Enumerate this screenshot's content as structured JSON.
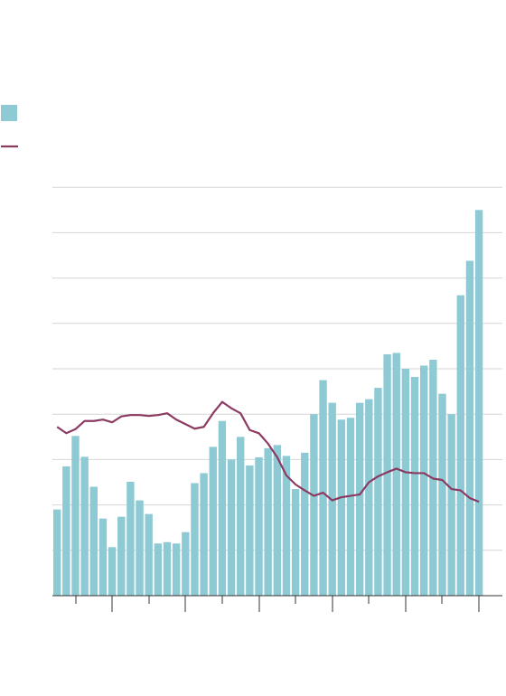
{
  "chart_data": {
    "type": "bar",
    "title": "",
    "xlabel": "",
    "ylabel": "",
    "grid": true,
    "legend_position": "top-left",
    "ylim_bars": [
      0,
      9
    ],
    "ylim_line": [
      0,
      9
    ],
    "colors": {
      "bars": "#8ecad4",
      "line": "#8c3a62",
      "grid": "#d6d6d6",
      "axis": "#333333"
    },
    "legend": [
      {
        "swatch": "bar",
        "label": ""
      },
      {
        "swatch": "line",
        "label": ""
      }
    ],
    "series": [
      {
        "name": "",
        "type": "bar",
        "values": [
          1.9,
          2.85,
          3.52,
          3.06,
          2.4,
          1.7,
          1.07,
          1.74,
          2.51,
          2.1,
          1.8,
          1.15,
          1.18,
          1.15,
          1.4,
          2.48,
          2.7,
          3.28,
          3.85,
          3.0,
          3.5,
          2.87,
          3.05,
          3.25,
          3.32,
          3.08,
          2.35,
          3.15,
          4.0,
          4.75,
          4.25,
          3.88,
          3.92,
          4.25,
          4.33,
          4.58,
          5.32,
          5.35,
          5.0,
          4.82,
          5.07,
          5.2,
          4.45,
          4.0,
          6.62,
          7.38,
          8.5
        ]
      },
      {
        "name": "",
        "type": "line",
        "values": [
          3.72,
          3.58,
          3.67,
          3.85,
          3.85,
          3.88,
          3.82,
          3.95,
          3.98,
          3.98,
          3.96,
          3.98,
          4.02,
          3.88,
          3.78,
          3.68,
          3.72,
          4.02,
          4.27,
          4.13,
          4.02,
          3.65,
          3.58,
          3.35,
          3.05,
          2.65,
          2.45,
          2.32,
          2.2,
          2.27,
          2.1,
          2.17,
          2.2,
          2.23,
          2.5,
          2.63,
          2.72,
          2.8,
          2.72,
          2.7,
          2.7,
          2.58,
          2.55,
          2.35,
          2.32,
          2.15,
          2.07
        ]
      }
    ]
  }
}
